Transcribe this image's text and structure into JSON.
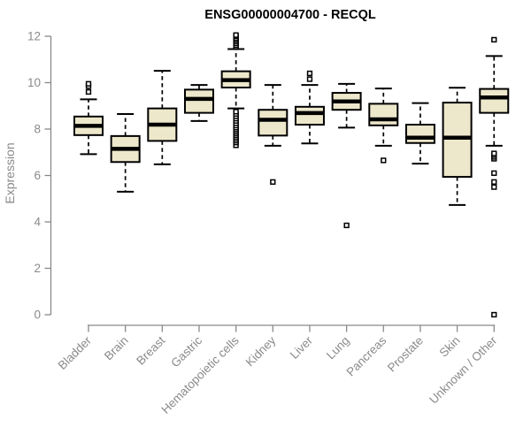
{
  "page": {
    "background": "#ffffff"
  },
  "chart_data": {
    "type": "boxplot",
    "title": "ENSG00000004700 - RECQL",
    "xlabel": "",
    "ylabel": "Expression",
    "ylim": [
      0,
      12
    ],
    "yticks": [
      0,
      2,
      4,
      6,
      8,
      10,
      12
    ],
    "grid": false,
    "legend": "none",
    "categories": [
      "Bladder",
      "Brain",
      "Breast",
      "Gastric",
      "Hematopoietic cells",
      "Kidney",
      "Liver",
      "Lung",
      "Pancreas",
      "Prostate",
      "Skin",
      "Unknown / Other"
    ],
    "boxes": [
      {
        "category": "Bladder",
        "whisker_low": 6.92,
        "q1": 7.74,
        "median": 8.14,
        "q3": 8.54,
        "whisker_high": 9.28,
        "outliers": [
          9.6,
          9.85,
          9.95
        ]
      },
      {
        "category": "Brain",
        "whisker_low": 5.3,
        "q1": 6.58,
        "median": 7.15,
        "q3": 7.7,
        "whisker_high": 8.65,
        "outliers": []
      },
      {
        "category": "Breast",
        "whisker_low": 6.48,
        "q1": 7.49,
        "median": 8.19,
        "q3": 8.89,
        "whisker_high": 10.51,
        "outliers": []
      },
      {
        "category": "Gastric",
        "whisker_low": 8.35,
        "q1": 8.7,
        "median": 9.3,
        "q3": 9.7,
        "whisker_high": 9.9,
        "outliers": []
      },
      {
        "category": "Hematopoietic cells",
        "whisker_low": 8.89,
        "q1": 9.79,
        "median": 10.11,
        "q3": 10.49,
        "whisker_high": 11.45,
        "outliers": [
          7.3,
          7.42,
          7.5,
          7.58,
          7.66,
          7.74,
          7.82,
          7.9,
          7.98,
          8.06,
          8.15,
          8.25,
          8.35,
          8.45,
          8.55,
          8.65,
          8.75,
          11.55,
          11.62,
          11.7,
          11.78,
          11.85,
          11.92,
          12.0,
          12.05
        ]
      },
      {
        "category": "Kidney",
        "whisker_low": 7.28,
        "q1": 7.72,
        "median": 8.4,
        "q3": 8.83,
        "whisker_high": 9.9,
        "outliers": [
          5.72
        ]
      },
      {
        "category": "Liver",
        "whisker_low": 7.38,
        "q1": 8.19,
        "median": 8.69,
        "q3": 8.96,
        "whisker_high": 9.9,
        "outliers": [
          10.15,
          10.4
        ]
      },
      {
        "category": "Lung",
        "whisker_low": 8.06,
        "q1": 8.83,
        "median": 9.19,
        "q3": 9.56,
        "whisker_high": 9.95,
        "outliers": [
          3.85
        ]
      },
      {
        "category": "Pancreas",
        "whisker_low": 7.28,
        "q1": 8.16,
        "median": 8.42,
        "q3": 9.09,
        "whisker_high": 9.75,
        "outliers": [
          6.65
        ]
      },
      {
        "category": "Prostate",
        "whisker_low": 6.51,
        "q1": 7.4,
        "median": 7.63,
        "q3": 8.19,
        "whisker_high": 9.12,
        "outliers": []
      },
      {
        "category": "Skin",
        "whisker_low": 4.73,
        "q1": 5.94,
        "median": 7.63,
        "q3": 9.14,
        "whisker_high": 9.78,
        "outliers": []
      },
      {
        "category": "Unknown / Other",
        "whisker_low": 7.28,
        "q1": 8.7,
        "median": 9.36,
        "q3": 9.73,
        "whisker_high": 11.15,
        "outliers": [
          0.0,
          5.5,
          5.72,
          6.1,
          6.72,
          6.8,
          6.88,
          6.95,
          11.85
        ]
      }
    ],
    "style": {
      "box_fill": "#EDE7CB",
      "box_stroke": "#000000",
      "median_color": "#000000",
      "whisker_style": "dashed",
      "outlier_marker": "open-square",
      "axis_color": "#898989",
      "label_color": "#8a8a8a",
      "title_color": "#000000"
    }
  }
}
